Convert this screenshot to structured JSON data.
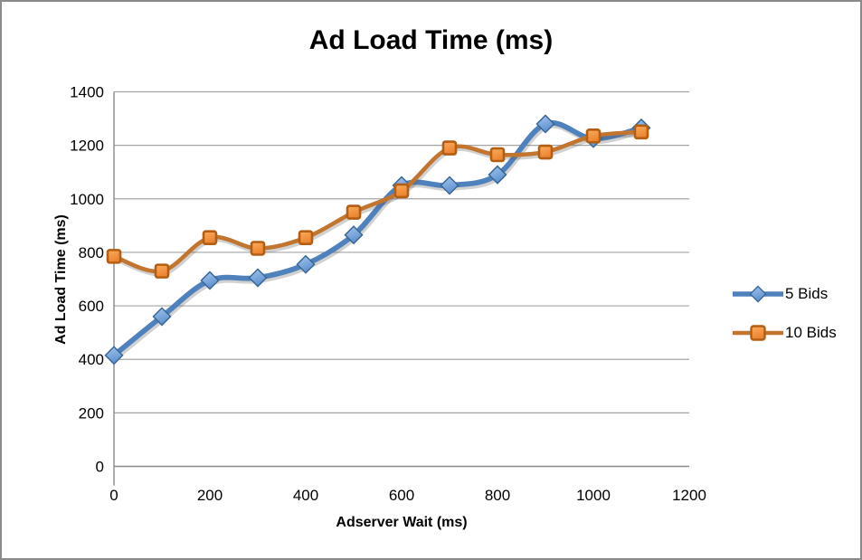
{
  "chart_data": {
    "type": "line",
    "title": "Ad Load Time (ms)",
    "xlabel": "Adserver Wait (ms)",
    "ylabel": "Ad Load Time (ms)",
    "x": [
      0,
      100,
      200,
      300,
      400,
      500,
      600,
      700,
      800,
      900,
      1000,
      1100
    ],
    "x_ticks": [
      0,
      200,
      400,
      600,
      800,
      1000,
      1200
    ],
    "y_ticks": [
      0,
      200,
      400,
      600,
      800,
      1000,
      1200,
      1400
    ],
    "xlim": [
      0,
      1200
    ],
    "ylim": [
      0,
      1400
    ],
    "grid": "horizontal",
    "smooth": true,
    "legend_position": "right",
    "series": [
      {
        "name": "5 Bids",
        "marker": "diamond",
        "line_color": "#4F81BD",
        "marker_fill_light": "#A3C6EF",
        "marker_fill_dark": "#5E91CE",
        "marker_border": "#3A6793",
        "values": [
          415,
          560,
          695,
          705,
          755,
          865,
          1050,
          1050,
          1090,
          1280,
          1225,
          1265
        ]
      },
      {
        "name": "10 Bids",
        "marker": "square",
        "line_color": "#C1752F",
        "marker_fill_light": "#FBAD5D",
        "marker_fill_dark": "#EC8330",
        "marker_border": "#B35E12",
        "values": [
          785,
          730,
          855,
          815,
          855,
          950,
          1030,
          1190,
          1165,
          1175,
          1235,
          1250
        ]
      }
    ],
    "colors": {
      "gridline": "#A4A4A4",
      "axis_line": "#8A8A8A",
      "frame_border": "#8A8A8A",
      "background": "#FFFFFF",
      "text": "#000000"
    }
  }
}
